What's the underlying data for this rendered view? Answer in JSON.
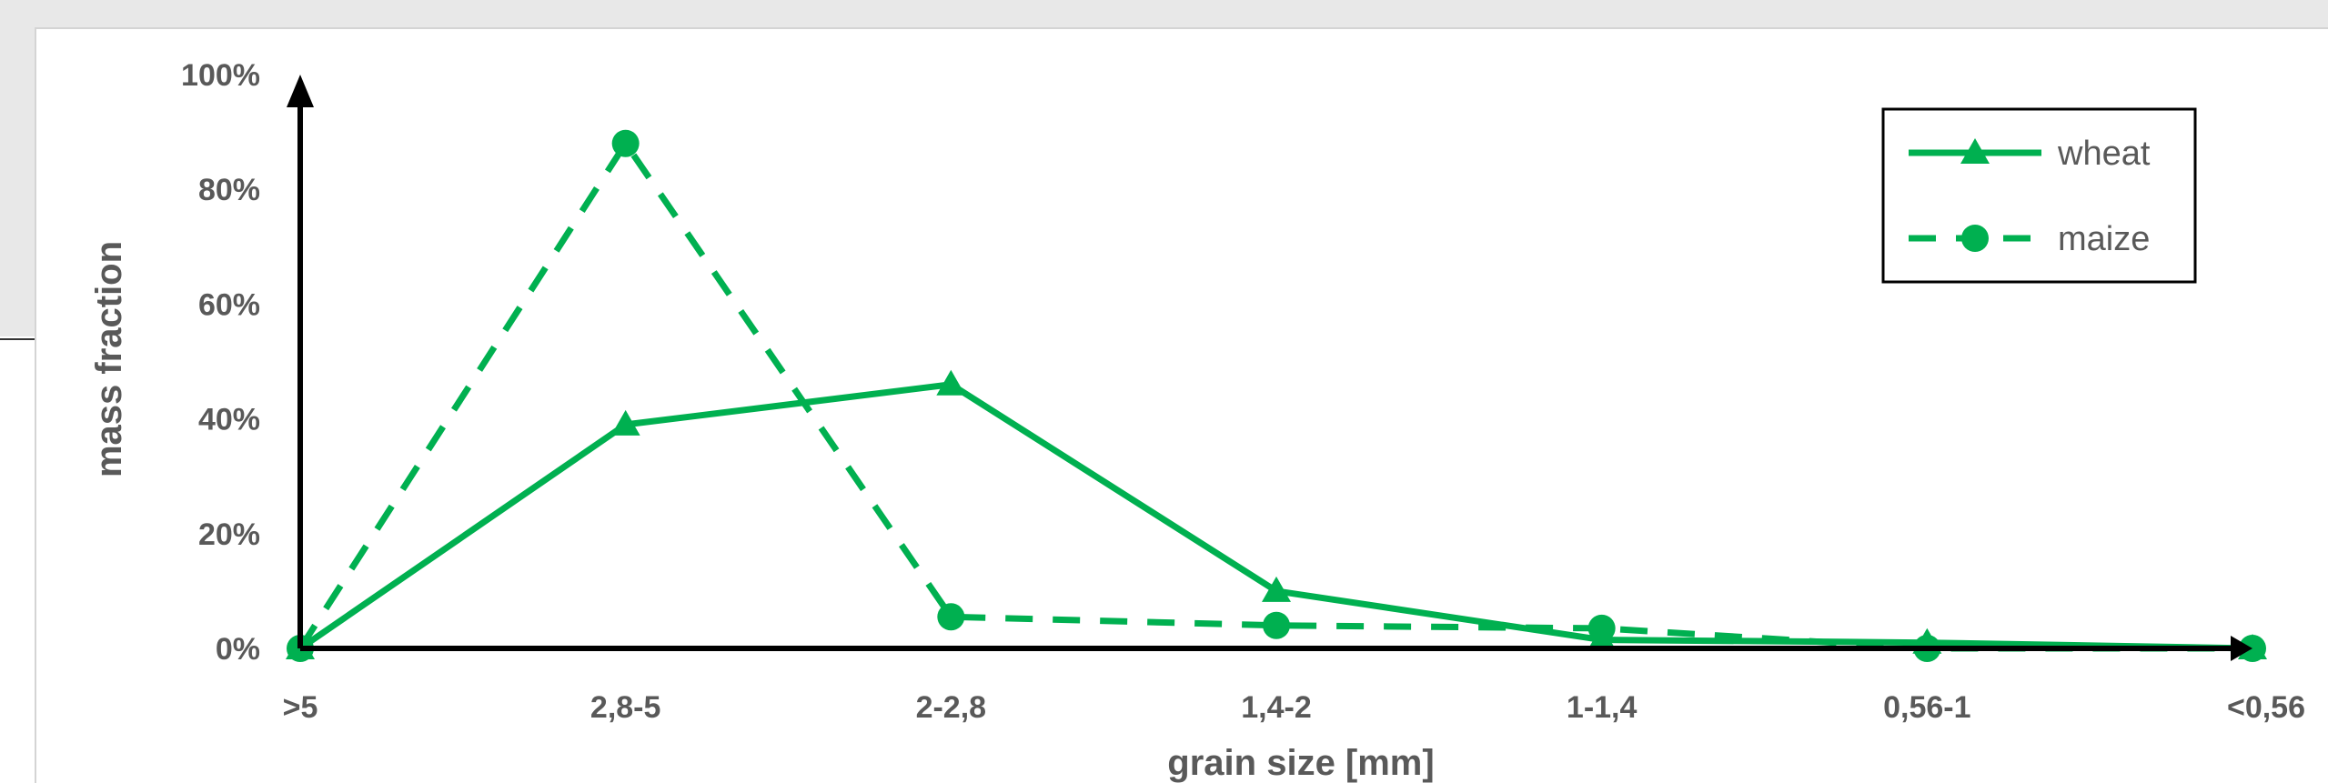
{
  "chart_data": {
    "type": "line",
    "xlabel": "grain size [mm]",
    "ylabel": "mass fraction",
    "categories": [
      ">5",
      "2,8-5",
      "2-2,8",
      "1,4-2",
      "1-1,4",
      "0,56-1",
      "<0,56"
    ],
    "y_ticks": [
      "0%",
      "20%",
      "40%",
      "60%",
      "80%",
      "100%"
    ],
    "ylim": [
      0,
      100
    ],
    "grid": false,
    "legend_position": "top-right",
    "series": [
      {
        "name": "wheat",
        "values": [
          0,
          39,
          46,
          10,
          1.5,
          1,
          0
        ],
        "line_style": "solid",
        "marker": "triangle",
        "color": "#00b050"
      },
      {
        "name": "maize",
        "values": [
          0,
          88,
          5.5,
          4,
          3.5,
          0,
          0
        ],
        "line_style": "dashed",
        "marker": "circle",
        "color": "#00b050"
      }
    ]
  }
}
